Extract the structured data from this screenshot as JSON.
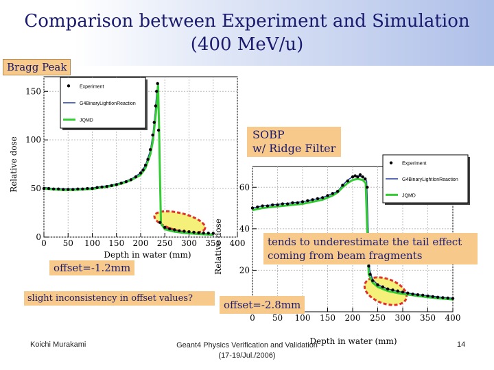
{
  "slide": {
    "title_line1": "Comparison between Experiment and Simulation",
    "title_line2": "(400 MeV/u)",
    "bragg_label": "Bragg Peak",
    "sobp_line1": "SOBP",
    "sobp_line2": "w/ Ridge Filter",
    "tail_note_line1": "tends to underestimate the tail effect",
    "tail_note_line2": "coming from beam fragments",
    "offset1": "offset=-1.2mm",
    "offset_note": "slight inconsistency in offset values?",
    "offset2": "offset=-2.8mm",
    "footer_left": "Koichi Murakami",
    "footer_center_line1": "Geant4 Physics Verification and Validation",
    "footer_center_line2": "(17-19/Jul./2006)",
    "page_number": "14"
  },
  "colors": {
    "experiment": "#000000",
    "binary": "#1f3b9e",
    "jqmd": "#33cc33",
    "highlight_fill": "#f4f07a",
    "highlight_ring": "#e0302a"
  },
  "chart_data": [
    {
      "type": "line",
      "name": "bragg-peak",
      "xlabel": "Depth in water (mm)",
      "ylabel": "Relative dose",
      "xlim": [
        0,
        400
      ],
      "ylim": [
        0,
        165
      ],
      "xticks": [
        0,
        50,
        100,
        150,
        200,
        250,
        300,
        350,
        400
      ],
      "yticks": [
        0,
        50,
        100,
        150
      ],
      "legend": [
        "Experiment",
        "G4BinaryLightIonReaction",
        "JQMD"
      ],
      "series": [
        {
          "name": "Experiment",
          "style": "points",
          "x": [
            0,
            10,
            20,
            30,
            40,
            50,
            60,
            70,
            80,
            90,
            100,
            110,
            120,
            130,
            140,
            150,
            160,
            170,
            180,
            190,
            200,
            205,
            210,
            215,
            220,
            225,
            228,
            231,
            233,
            235,
            237,
            240,
            250,
            260,
            270,
            280,
            290,
            300,
            310,
            320,
            330,
            340,
            350
          ],
          "y": [
            50,
            50,
            49.5,
            49.5,
            49,
            49,
            49,
            49.5,
            49.5,
            50,
            50,
            51,
            51.5,
            52,
            53,
            54,
            55.5,
            57,
            59,
            62,
            66,
            69,
            74,
            80,
            90,
            105,
            118,
            135,
            150,
            158,
            110,
            15,
            10,
            8.5,
            7.5,
            6.5,
            6,
            5.5,
            5,
            4.5,
            4.2,
            4,
            3.8
          ]
        },
        {
          "name": "G4BinaryLightIonReaction",
          "style": "line",
          "x": [
            0,
            20,
            40,
            60,
            80,
            100,
            120,
            140,
            160,
            180,
            200,
            210,
            220,
            225,
            230,
            233,
            235,
            237,
            239,
            241,
            243,
            250,
            270,
            290,
            310,
            330,
            350
          ],
          "y": [
            51,
            50,
            49.5,
            49.5,
            50,
            50.5,
            52,
            53.5,
            56,
            59.5,
            66,
            74,
            89,
            104,
            128,
            148,
            155,
            125,
            70,
            20,
            12,
            9,
            6.5,
            5.2,
            4.2,
            3.6,
            3.2
          ]
        },
        {
          "name": "JQMD",
          "style": "line",
          "x": [
            0,
            20,
            40,
            60,
            80,
            100,
            120,
            140,
            160,
            180,
            200,
            210,
            220,
            225,
            230,
            234,
            236,
            238,
            240,
            242,
            250,
            270,
            290,
            310,
            330,
            350
          ],
          "y": [
            50,
            49,
            48.5,
            48.5,
            49,
            49.5,
            51,
            52.5,
            55,
            58.5,
            64,
            71,
            85,
            98,
            120,
            140,
            158,
            115,
            60,
            14,
            8,
            5.5,
            4.2,
            3.4,
            2.8,
            2.4
          ]
        }
      ]
    },
    {
      "type": "line",
      "name": "sobp",
      "xlabel": "Depth in water (mm)",
      "ylabel": "Relative dose",
      "xlim": [
        0,
        400
      ],
      "ylim": [
        0,
        70
      ],
      "xticks": [
        0,
        50,
        100,
        150,
        200,
        250,
        300,
        350,
        400
      ],
      "yticks": [
        20,
        40,
        60
      ],
      "legend": [
        "Experiment",
        "G4BinaryLightIonReaction",
        "JQMD"
      ],
      "series": [
        {
          "name": "Experiment",
          "style": "points",
          "x": [
            0,
            10,
            20,
            30,
            40,
            50,
            60,
            70,
            80,
            90,
            100,
            110,
            120,
            130,
            140,
            150,
            160,
            170,
            180,
            190,
            200,
            205,
            210,
            215,
            220,
            225,
            229,
            232,
            235,
            240,
            250,
            260,
            270,
            280,
            290,
            300,
            310,
            320,
            330,
            340,
            350,
            360,
            370,
            380,
            390,
            400
          ],
          "y": [
            50,
            50.5,
            51,
            51,
            51.5,
            51.5,
            52,
            52,
            52.5,
            52.5,
            53,
            53.5,
            54,
            54.5,
            55,
            56,
            57,
            58,
            61,
            63,
            65,
            65.5,
            65,
            66,
            65,
            64,
            60,
            22,
            18,
            15,
            13,
            12,
            11,
            10.5,
            10,
            9.5,
            9,
            8.5,
            8.2,
            8,
            7.6,
            7.3,
            7,
            6.8,
            6.6,
            6.4
          ]
        },
        {
          "name": "G4BinaryLightIonReaction",
          "style": "line",
          "x": [
            0,
            20,
            40,
            60,
            80,
            100,
            120,
            140,
            160,
            170,
            180,
            190,
            200,
            210,
            220,
            228,
            231,
            234,
            240,
            250,
            270,
            290,
            310,
            330,
            350,
            370,
            390,
            400
          ],
          "y": [
            50,
            51,
            51.5,
            52,
            52.5,
            53,
            54,
            55,
            57,
            58,
            61,
            63.5,
            65,
            65.5,
            65,
            63,
            40,
            20,
            15.5,
            13,
            11,
            9.8,
            9,
            8.3,
            7.7,
            7.2,
            6.7,
            6.5
          ]
        },
        {
          "name": "JQMD",
          "style": "line",
          "x": [
            0,
            20,
            40,
            60,
            80,
            100,
            120,
            140,
            160,
            170,
            180,
            190,
            200,
            210,
            220,
            226,
            229,
            232,
            240,
            250,
            270,
            290,
            310,
            330,
            350,
            370,
            390,
            400
          ],
          "y": [
            49,
            50,
            50.5,
            51,
            51.5,
            52,
            53,
            54,
            56,
            57.5,
            60,
            62,
            63.5,
            64,
            63.5,
            62,
            40,
            18,
            14,
            12,
            10,
            9,
            8.3,
            7.6,
            7,
            6.5,
            6.1,
            5.9
          ]
        }
      ]
    }
  ]
}
